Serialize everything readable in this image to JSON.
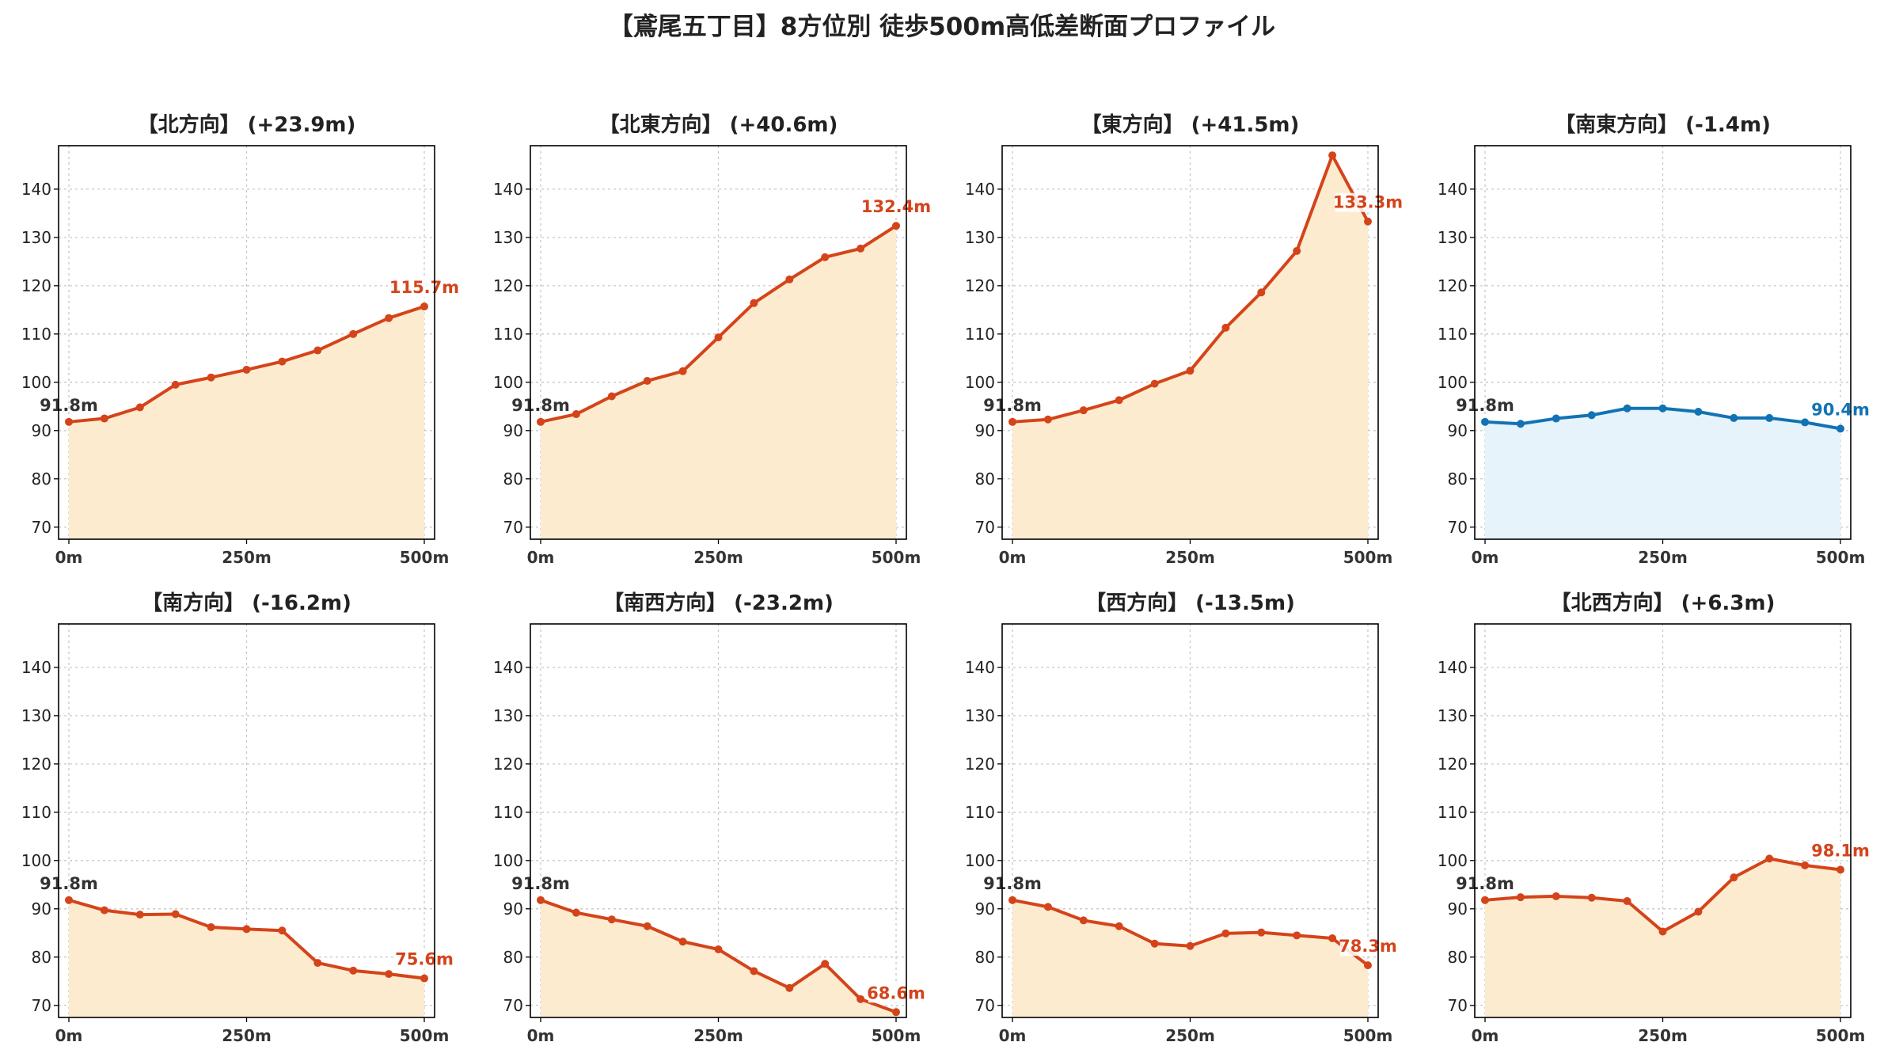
{
  "title": "【鳶尾五丁目】8方位別 徒歩500m高低差断面プロファイル",
  "colors": {
    "up_line": "#d4441a",
    "up_fill": "#fdebcf",
    "down_line": "#1173b4",
    "down_fill": "#e6f3fa",
    "start_label": "#333333"
  },
  "chart_data": [
    {
      "type": "area",
      "title": "【北方向】 (+23.9m)",
      "x": [
        0,
        50,
        100,
        150,
        200,
        250,
        300,
        350,
        400,
        450,
        500
      ],
      "xticks": [
        "0m",
        "250m",
        "500m"
      ],
      "y": [
        91.8,
        92.5,
        94.8,
        99.5,
        101.0,
        102.6,
        104.3,
        106.6,
        110.0,
        113.3,
        115.7
      ],
      "start_label": "91.8m",
      "end_label": "115.7m",
      "trend": "up",
      "yticks": [
        70,
        80,
        90,
        100,
        110,
        120,
        130,
        140
      ],
      "ylim": [
        67.5,
        149
      ],
      "grid": true
    },
    {
      "type": "area",
      "title": "【北東方向】 (+40.6m)",
      "x": [
        0,
        50,
        100,
        150,
        200,
        250,
        300,
        350,
        400,
        450,
        500
      ],
      "xticks": [
        "0m",
        "250m",
        "500m"
      ],
      "y": [
        91.8,
        93.4,
        97.1,
        100.3,
        102.3,
        109.3,
        116.4,
        121.3,
        125.9,
        127.7,
        132.4
      ],
      "start_label": "91.8m",
      "end_label": "132.4m",
      "trend": "up",
      "yticks": [
        70,
        80,
        90,
        100,
        110,
        120,
        130,
        140
      ],
      "ylim": [
        67.5,
        149
      ],
      "grid": true
    },
    {
      "type": "area",
      "title": "【東方向】 (+41.5m)",
      "x": [
        0,
        50,
        100,
        150,
        200,
        250,
        300,
        350,
        400,
        450,
        500
      ],
      "xticks": [
        "0m",
        "250m",
        "500m"
      ],
      "y": [
        91.8,
        92.3,
        94.2,
        96.3,
        99.7,
        102.4,
        111.3,
        118.6,
        127.2,
        147.0,
        133.3
      ],
      "start_label": "91.8m",
      "end_label": "133.3m",
      "trend": "up",
      "yticks": [
        70,
        80,
        90,
        100,
        110,
        120,
        130,
        140
      ],
      "ylim": [
        67.5,
        149
      ],
      "grid": true
    },
    {
      "type": "area",
      "title": "【南東方向】 (-1.4m)",
      "x": [
        0,
        50,
        100,
        150,
        200,
        250,
        300,
        350,
        400,
        450,
        500
      ],
      "xticks": [
        "0m",
        "250m",
        "500m"
      ],
      "y": [
        91.8,
        91.4,
        92.5,
        93.2,
        94.6,
        94.6,
        93.9,
        92.6,
        92.6,
        91.7,
        90.4
      ],
      "start_label": "91.8m",
      "end_label": "90.4m",
      "trend": "down",
      "yticks": [
        70,
        80,
        90,
        100,
        110,
        120,
        130,
        140
      ],
      "ylim": [
        67.5,
        149
      ],
      "grid": true
    },
    {
      "type": "area",
      "title": "【南方向】 (-16.2m)",
      "x": [
        0,
        50,
        100,
        150,
        200,
        250,
        300,
        350,
        400,
        450,
        500
      ],
      "xticks": [
        "0m",
        "250m",
        "500m"
      ],
      "y": [
        91.8,
        89.7,
        88.8,
        88.9,
        86.2,
        85.8,
        85.5,
        78.8,
        77.2,
        76.5,
        75.6
      ],
      "start_label": "91.8m",
      "end_label": "75.6m",
      "trend": "up",
      "yticks": [
        70,
        80,
        90,
        100,
        110,
        120,
        130,
        140
      ],
      "ylim": [
        67.5,
        149
      ],
      "grid": true
    },
    {
      "type": "area",
      "title": "【南西方向】 (-23.2m)",
      "x": [
        0,
        50,
        100,
        150,
        200,
        250,
        300,
        350,
        400,
        450,
        500
      ],
      "xticks": [
        "0m",
        "250m",
        "500m"
      ],
      "y": [
        91.8,
        89.2,
        87.8,
        86.4,
        83.2,
        81.6,
        77.1,
        73.6,
        78.6,
        71.3,
        68.6
      ],
      "start_label": "91.8m",
      "end_label": "68.6m",
      "trend": "up",
      "yticks": [
        70,
        80,
        90,
        100,
        110,
        120,
        130,
        140
      ],
      "ylim": [
        67.5,
        149
      ],
      "grid": true
    },
    {
      "type": "area",
      "title": "【西方向】 (-13.5m)",
      "x": [
        0,
        50,
        100,
        150,
        200,
        250,
        300,
        350,
        400,
        450,
        500
      ],
      "xticks": [
        "0m",
        "250m",
        "500m"
      ],
      "y": [
        91.8,
        90.4,
        87.6,
        86.4,
        82.8,
        82.3,
        84.9,
        85.1,
        84.5,
        83.9,
        78.3
      ],
      "start_label": "91.8m",
      "end_label": "78.3m",
      "trend": "up",
      "yticks": [
        70,
        80,
        90,
        100,
        110,
        120,
        130,
        140
      ],
      "ylim": [
        67.5,
        149
      ],
      "grid": true
    },
    {
      "type": "area",
      "title": "【北西方向】 (+6.3m)",
      "x": [
        0,
        50,
        100,
        150,
        200,
        250,
        300,
        350,
        400,
        450,
        500
      ],
      "xticks": [
        "0m",
        "250m",
        "500m"
      ],
      "y": [
        91.8,
        92.4,
        92.6,
        92.3,
        91.6,
        85.3,
        89.4,
        96.5,
        100.4,
        99.0,
        98.1
      ],
      "start_label": "91.8m",
      "end_label": "98.1m",
      "trend": "up",
      "yticks": [
        70,
        80,
        90,
        100,
        110,
        120,
        130,
        140
      ],
      "ylim": [
        67.5,
        149
      ],
      "grid": true
    }
  ]
}
